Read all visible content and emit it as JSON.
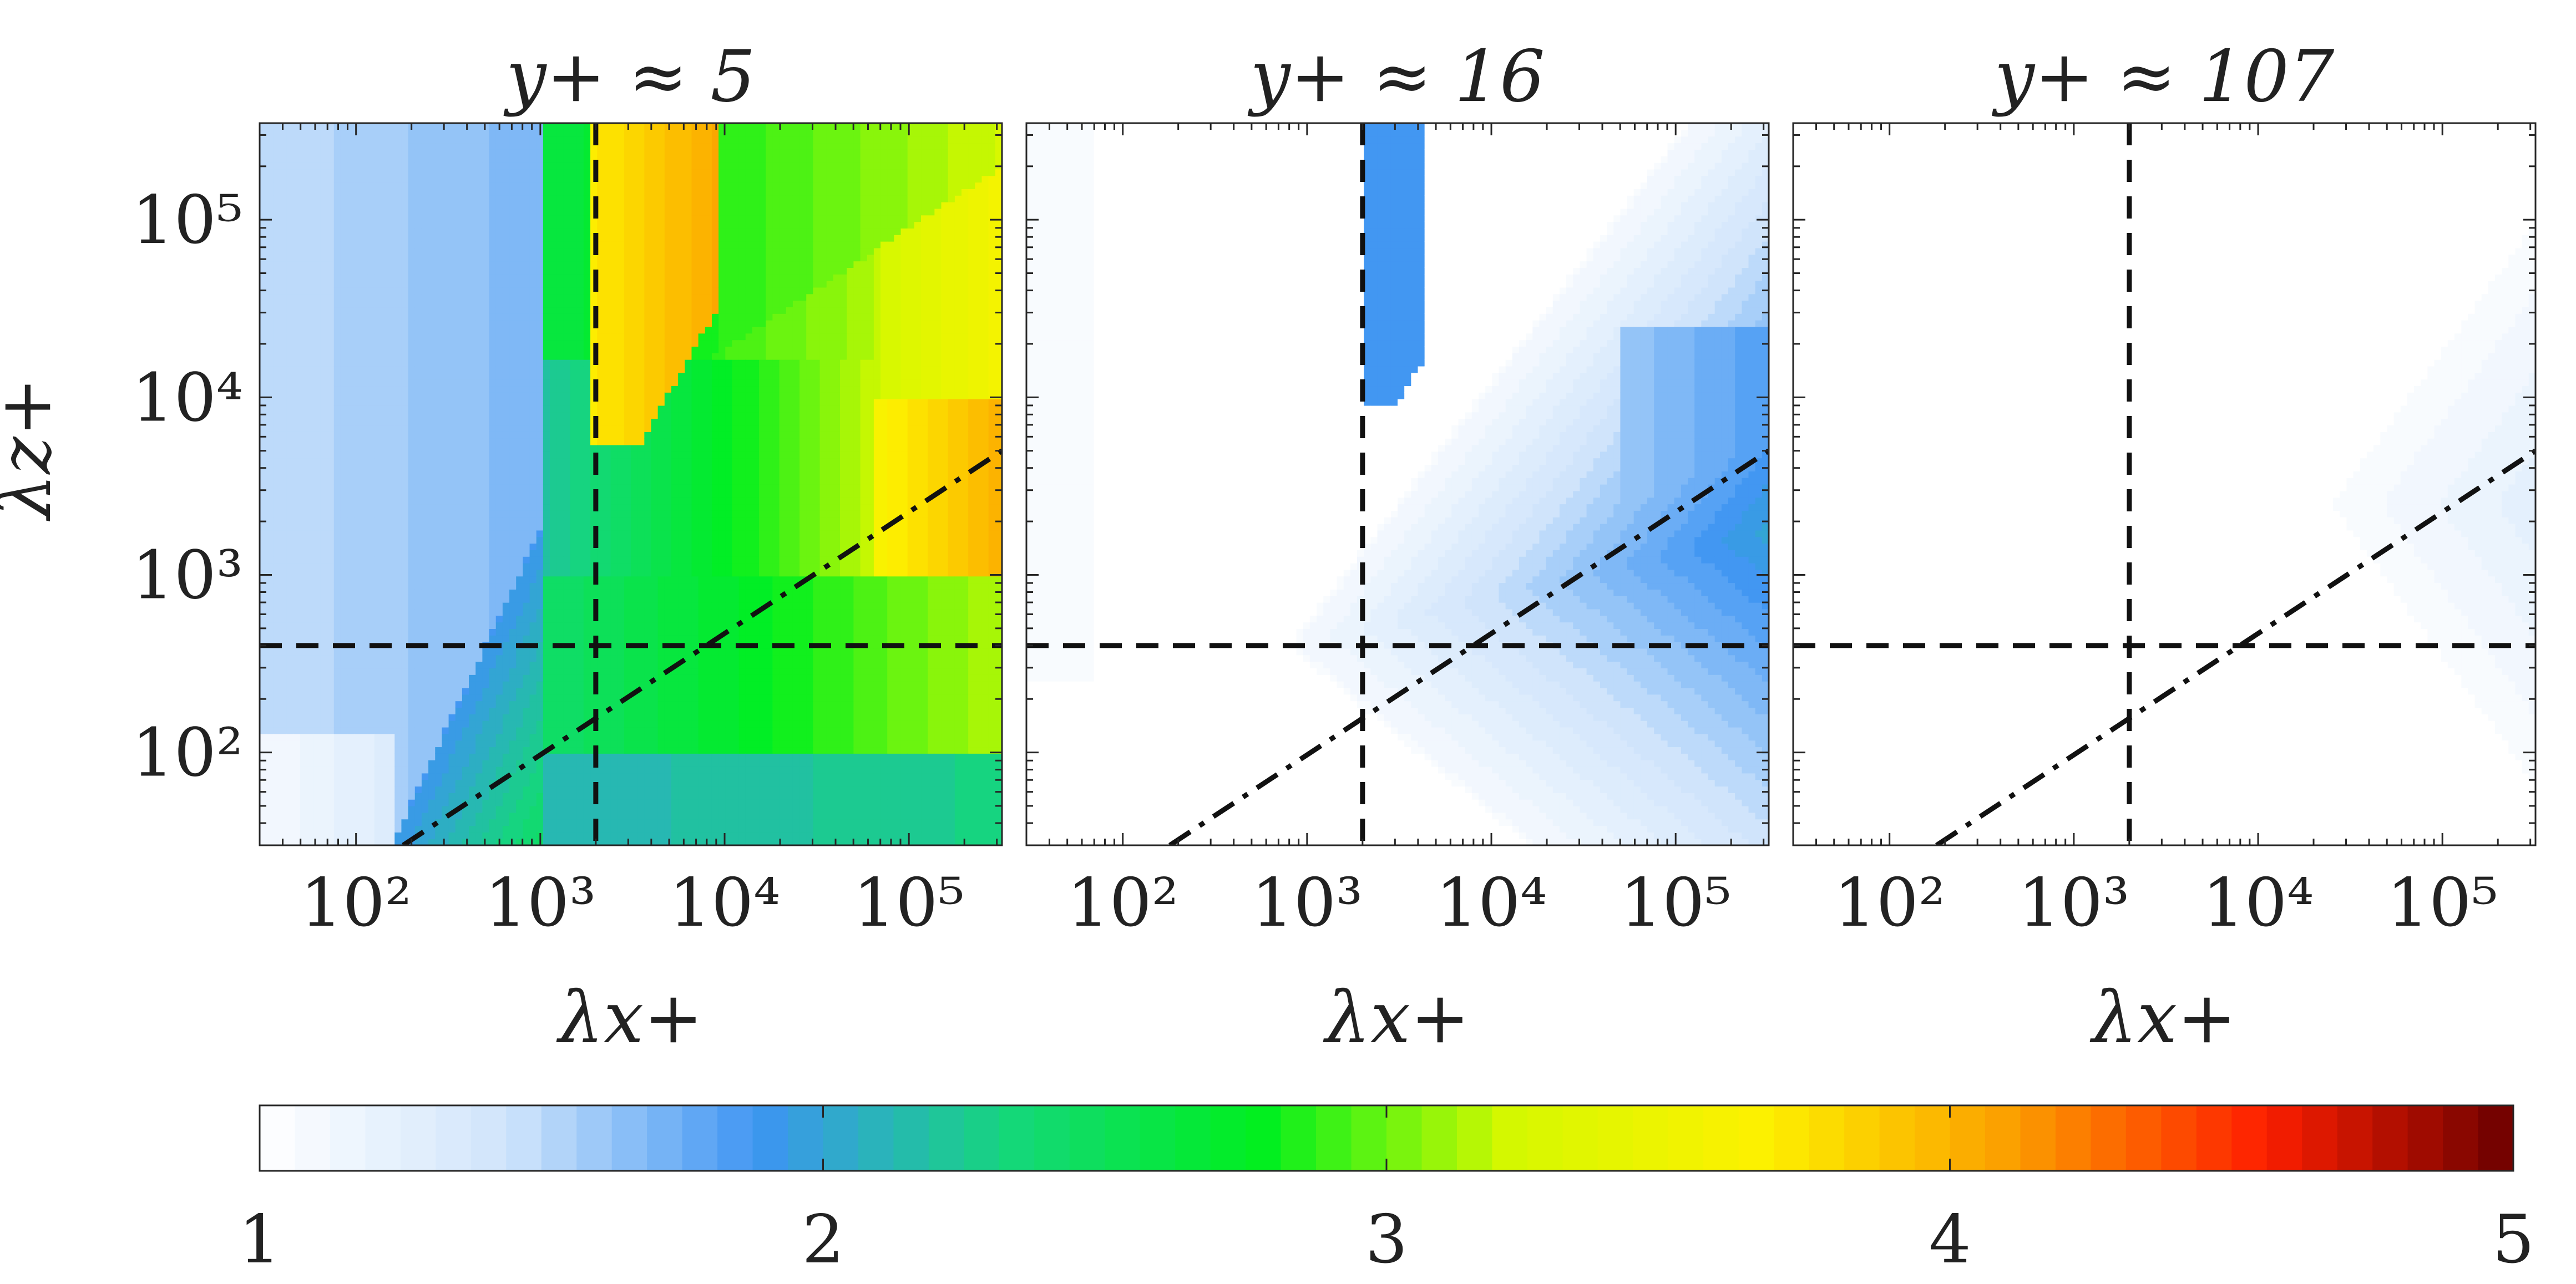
{
  "chart_data": [
    {
      "type": "heatmap",
      "panel_label": "y+ ≈ 5",
      "xlabel": "λx+",
      "ylabel": "λz+",
      "x_scale": "log",
      "y_scale": "log",
      "xlim": [
        30,
        320000
      ],
      "ylim": [
        30,
        350000
      ],
      "x_ticks": [
        "10²",
        "10³",
        "10⁴",
        "10⁵"
      ],
      "y_ticks": [
        "10²",
        "10³",
        "10⁴",
        "10⁵"
      ],
      "dashed_vertical_x": 2000,
      "dashed_horizontal_y": 400,
      "dashdot_line_points": [
        [
          180,
          30
        ],
        [
          320000,
          5000
        ]
      ],
      "value_levels": [
        {
          "region": "lower-left corner",
          "value": 1.1
        },
        {
          "region": "left band, λx+ < 10³",
          "value": 1.6
        },
        {
          "region": "diagonal band near line",
          "value": 2.1
        },
        {
          "region": "bottom right, λz+ < 100",
          "value": 2.3
        },
        {
          "region": "center right, 10²–10³ λz+",
          "value": 2.9
        },
        {
          "region": "large λx+, λz+ ≈ 3×10³",
          "value": 3.9
        },
        {
          "region": "λx+ 2×10³–8×10³, λz+ > 5×10³",
          "value": 4.0
        },
        {
          "region": "upper diagonal",
          "value": 3.2
        }
      ]
    },
    {
      "type": "heatmap",
      "panel_label": "y+ ≈ 16",
      "xlabel": "λx+",
      "x_scale": "log",
      "y_scale": "log",
      "xlim": [
        30,
        320000
      ],
      "ylim": [
        30,
        350000
      ],
      "x_ticks": [
        "10²",
        "10³",
        "10⁴",
        "10⁵"
      ],
      "dashed_vertical_x": 2000,
      "dashed_horizontal_y": 400,
      "dashdot_line_points": [
        [
          180,
          30
        ],
        [
          320000,
          5000
        ]
      ],
      "value_levels": [
        {
          "region": "left strip λx+ < 70",
          "value": 1.05
        },
        {
          "region": "λx+ 2×10³–4×10³, λz+ > 10⁴",
          "value": 1.9
        },
        {
          "region": "large λx+, λz+ ≈ 10³–10⁴",
          "value": 1.75
        },
        {
          "region": "central wedge",
          "value": 1.4
        },
        {
          "region": "outer rim",
          "value": 1.15
        }
      ]
    },
    {
      "type": "heatmap",
      "panel_label": "y+ ≈ 107",
      "xlabel": "λx+",
      "x_scale": "log",
      "y_scale": "log",
      "xlim": [
        30,
        320000
      ],
      "ylim": [
        30,
        350000
      ],
      "x_ticks": [
        "10²",
        "10³",
        "10⁴",
        "10⁵"
      ],
      "dashed_vertical_x": 2000,
      "dashed_horizontal_y": 400,
      "dashdot_line_points": [
        [
          180,
          30
        ],
        [
          320000,
          5000
        ]
      ],
      "value_levels": [
        {
          "region": "λx+ > 3×10⁴, λz+ 5×10²–10⁵",
          "value": 1.08
        },
        {
          "region": "core near λx+ ≈ 3×10⁵, λz+ ≈ 2×10³",
          "value": 1.15
        }
      ]
    }
  ],
  "colorbar": {
    "range": [
      1,
      5
    ],
    "tick_labels": [
      "1",
      "2",
      "3",
      "4",
      "5"
    ],
    "stops": [
      "#ffffff",
      "#cfe4fb",
      "#3d94f2",
      "#14d77a",
      "#00ef1f",
      "#d6f800",
      "#fdf100",
      "#fb9e00",
      "#fe1f00",
      "#6b0000"
    ]
  }
}
